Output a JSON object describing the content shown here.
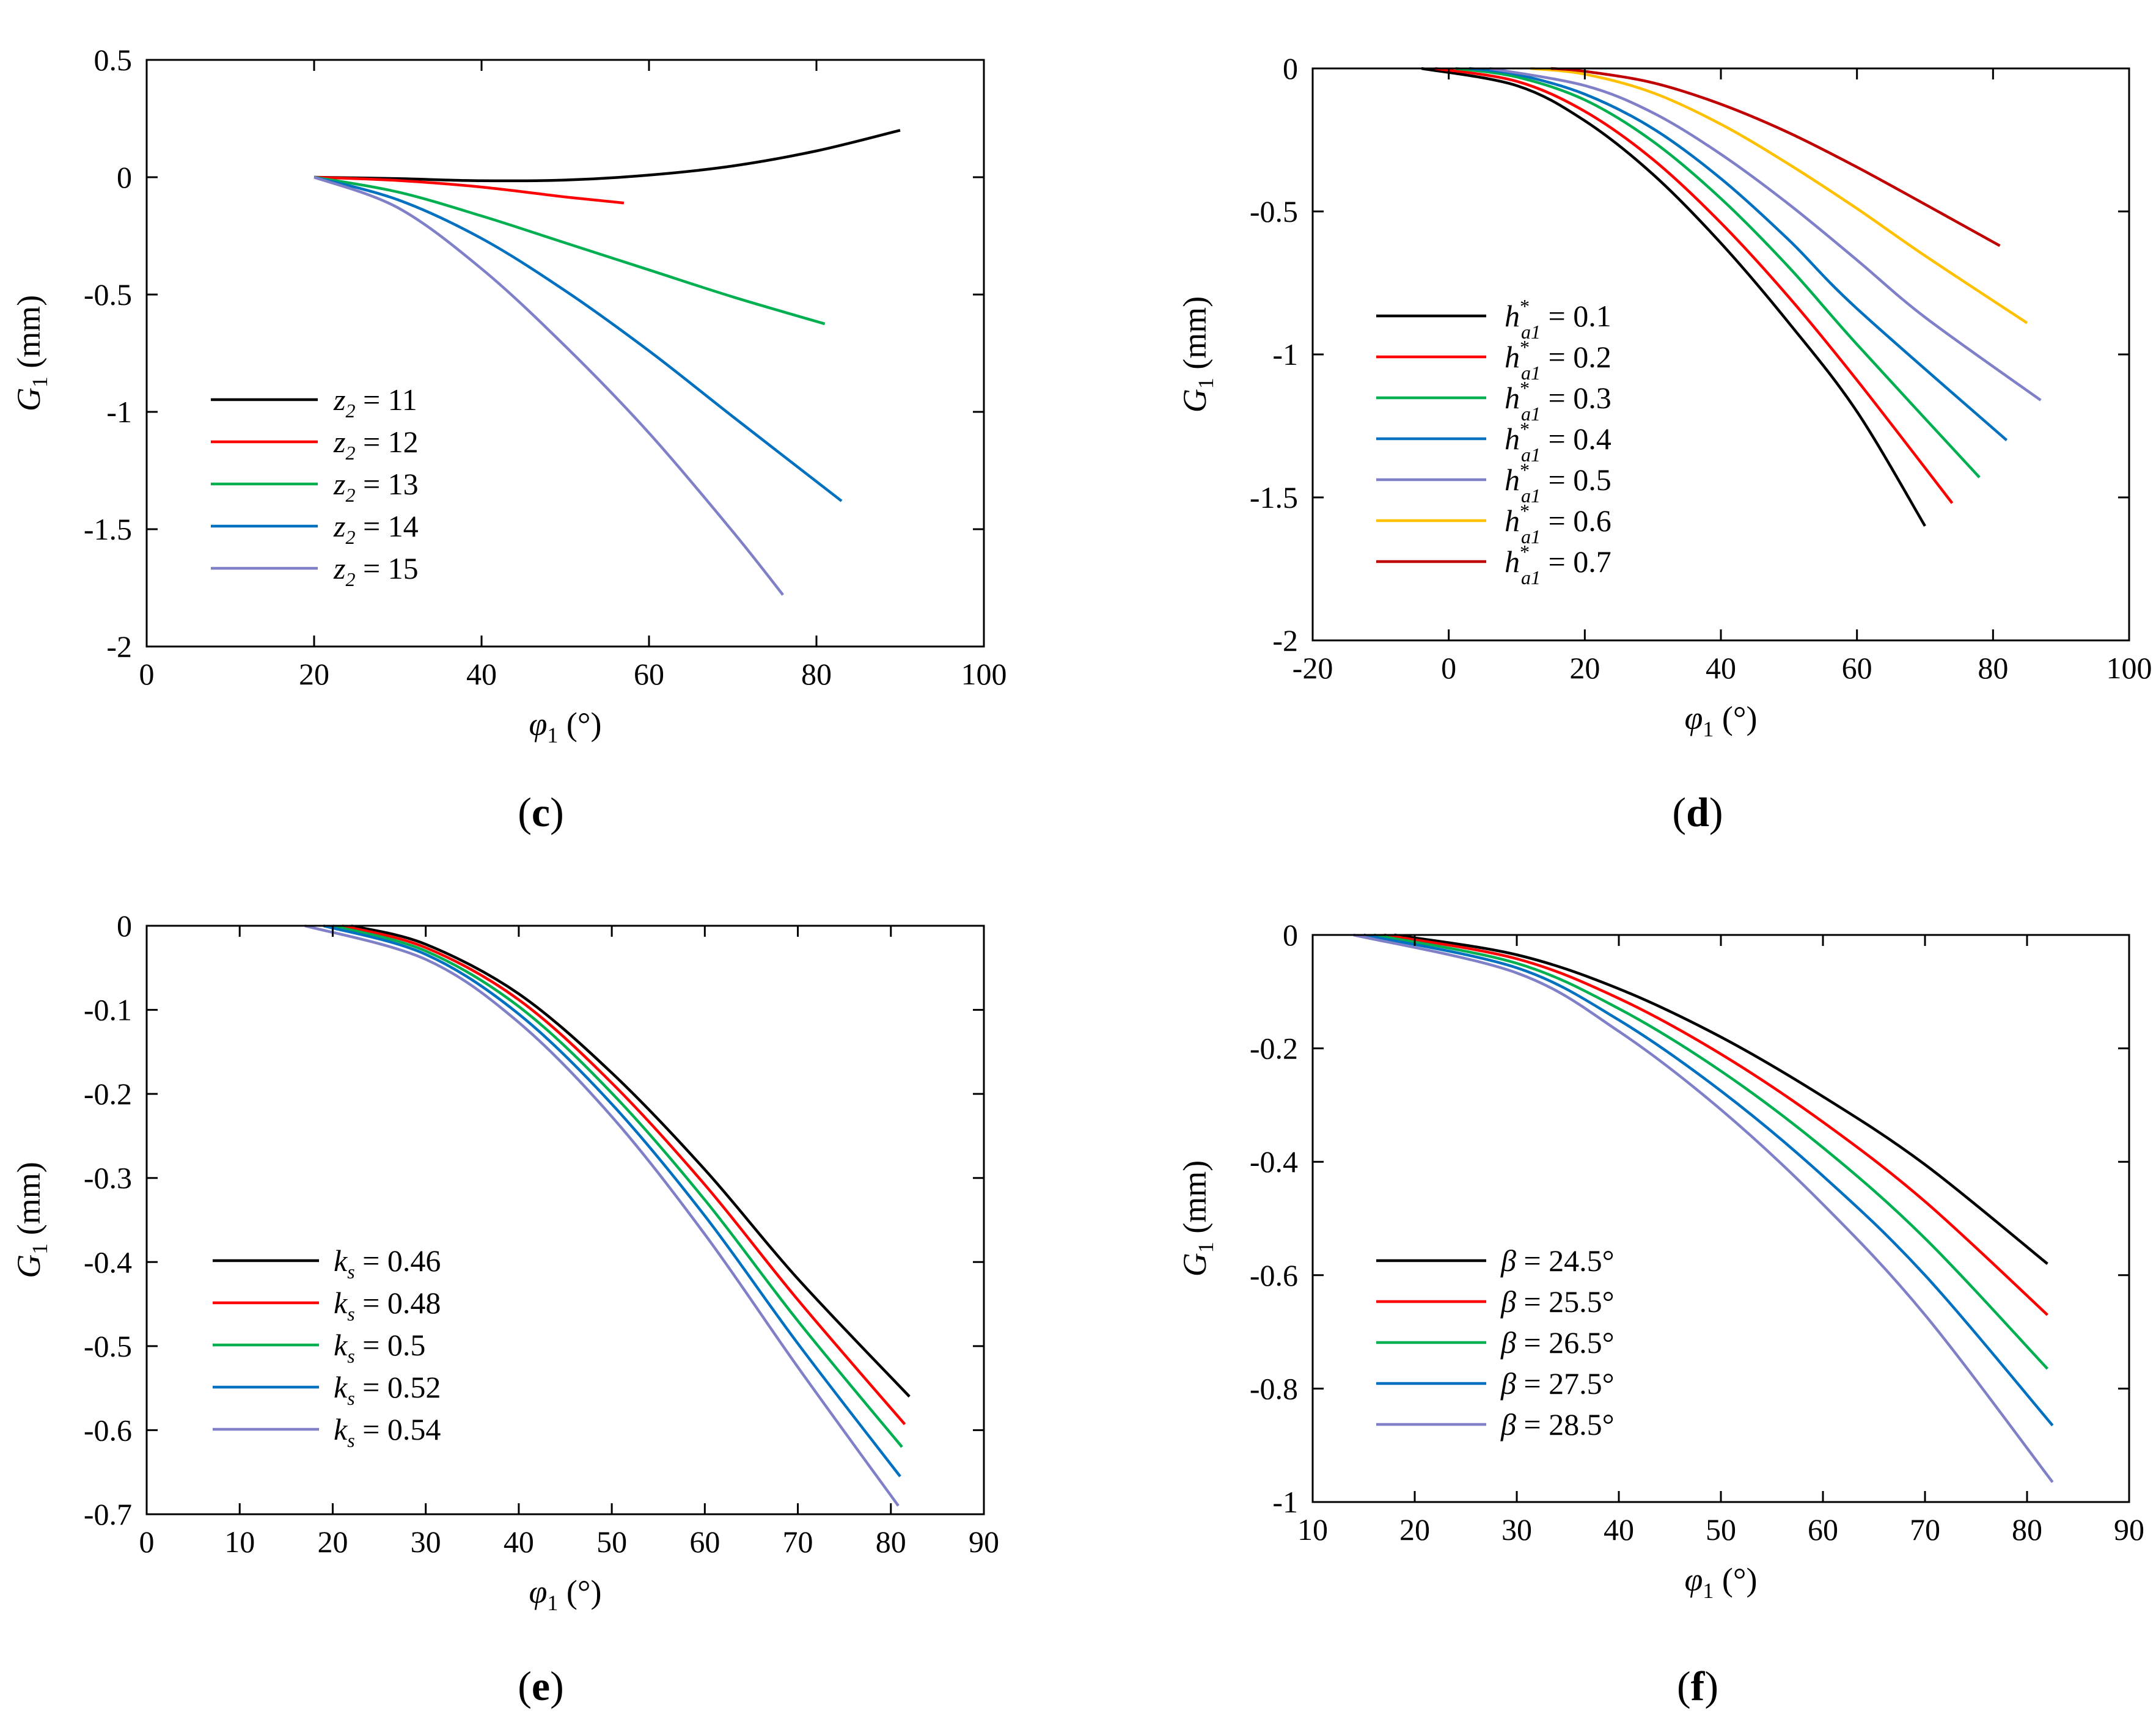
{
  "panels": [
    "c",
    "d",
    "e",
    "f"
  ],
  "chart_data": [
    {
      "panel": "c",
      "type": "line",
      "xlabel": "φ1 (°)",
      "ylabel": "G1 (mm)",
      "xlim": [
        0,
        100
      ],
      "ylim": [
        -2,
        0.5
      ],
      "xticks": [
        0,
        20,
        40,
        60,
        80,
        100
      ],
      "yticks": [
        0.5,
        0,
        -0.5,
        -1,
        -1.5,
        -2
      ],
      "legend_position": "bottom-left",
      "legend_symbol": "z2",
      "series": [
        {
          "name": "11",
          "color": "#000000",
          "x": [
            20,
            30,
            40,
            50,
            60,
            70,
            80,
            90
          ],
          "y": [
            0,
            -0.006,
            -0.015,
            -0.012,
            0.009,
            0.048,
            0.112,
            0.2
          ]
        },
        {
          "name": "12",
          "color": "#ff0000",
          "x": [
            20,
            30,
            40,
            50,
            57
          ],
          "y": [
            0,
            -0.014,
            -0.042,
            -0.084,
            -0.11
          ]
        },
        {
          "name": "13",
          "color": "#00b050",
          "x": [
            20,
            30,
            40,
            50,
            60,
            70,
            81
          ],
          "y": [
            0,
            -0.063,
            -0.165,
            -0.28,
            -0.395,
            -0.51,
            -0.625
          ]
        },
        {
          "name": "14",
          "color": "#0070c0",
          "x": [
            20,
            30,
            40,
            50,
            60,
            70,
            83
          ],
          "y": [
            0,
            -0.096,
            -0.261,
            -0.484,
            -0.74,
            -1.02,
            -1.38
          ]
        },
        {
          "name": "15",
          "color": "#8080c8",
          "x": [
            20,
            30,
            40,
            50,
            60,
            70,
            76
          ],
          "y": [
            0,
            -0.13,
            -0.39,
            -0.72,
            -1.09,
            -1.51,
            -1.78
          ]
        }
      ]
    },
    {
      "panel": "d",
      "type": "line",
      "xlabel": "φ1 (°)",
      "ylabel": "G1 (mm)",
      "xlim": [
        -20,
        100
      ],
      "ylim": [
        -2,
        0
      ],
      "xticks": [
        -20,
        0,
        20,
        40,
        60,
        80,
        100
      ],
      "yticks": [
        0,
        -0.5,
        -1,
        -1.5,
        -2
      ],
      "legend_position": "middle-left",
      "legend_symbol": "h*a1",
      "series": [
        {
          "name": "0.1",
          "color": "#000000",
          "x": [
            -4,
            10,
            20,
            30,
            40,
            50,
            60,
            70
          ],
          "y": [
            0,
            -0.06,
            -0.183,
            -0.37,
            -0.611,
            -0.89,
            -1.2,
            -1.6
          ]
        },
        {
          "name": "0.2",
          "color": "#ff0000",
          "x": [
            -2,
            10,
            20,
            30,
            40,
            50,
            60,
            74
          ],
          "y": [
            0,
            -0.045,
            -0.15,
            -0.318,
            -0.54,
            -0.8,
            -1.09,
            -1.52
          ]
        },
        {
          "name": "0.3",
          "color": "#00b050",
          "x": [
            1,
            10,
            20,
            30,
            40,
            50,
            60,
            78
          ],
          "y": [
            0,
            -0.03,
            -0.11,
            -0.255,
            -0.455,
            -0.695,
            -0.965,
            -1.43
          ]
        },
        {
          "name": "0.4",
          "color": "#0070c0",
          "x": [
            3,
            10,
            20,
            30,
            40,
            50,
            60,
            82
          ],
          "y": [
            0,
            -0.021,
            -0.09,
            -0.21,
            -0.385,
            -0.6,
            -0.84,
            -1.3
          ]
        },
        {
          "name": "0.5",
          "color": "#8080c8",
          "x": [
            6,
            20,
            30,
            40,
            50,
            60,
            70,
            87
          ],
          "y": [
            0,
            -0.06,
            -0.155,
            -0.3,
            -0.475,
            -0.67,
            -0.87,
            -1.16
          ]
        },
        {
          "name": "0.6",
          "color": "#ffc000",
          "x": [
            12,
            20,
            30,
            40,
            50,
            60,
            70,
            85
          ],
          "y": [
            0,
            -0.02,
            -0.085,
            -0.195,
            -0.335,
            -0.49,
            -0.655,
            -0.89
          ]
        },
        {
          "name": "0.7",
          "color": "#c00000",
          "x": [
            15,
            20,
            30,
            40,
            50,
            60,
            70,
            81
          ],
          "y": [
            0,
            -0.01,
            -0.05,
            -0.125,
            -0.225,
            -0.345,
            -0.475,
            -0.62
          ]
        }
      ]
    },
    {
      "panel": "e",
      "type": "line",
      "xlabel": "φ1 (°)",
      "ylabel": "G1 (mm)",
      "xlim": [
        0,
        90
      ],
      "ylim": [
        -0.7,
        0
      ],
      "xticks": [
        0,
        10,
        20,
        30,
        40,
        50,
        60,
        70,
        80,
        90
      ],
      "yticks": [
        0,
        -0.1,
        -0.2,
        -0.3,
        -0.4,
        -0.5,
        -0.6,
        -0.7
      ],
      "legend_position": "bottom-left",
      "legend_symbol": "ks",
      "series": [
        {
          "name": "0.46",
          "color": "#000000",
          "x": [
            22,
            30,
            40,
            50,
            60,
            70,
            82
          ],
          "y": [
            0,
            -0.022,
            -0.081,
            -0.175,
            -0.29,
            -0.42,
            -0.56
          ]
        },
        {
          "name": "0.48",
          "color": "#ff0000",
          "x": [
            21,
            30,
            40,
            50,
            60,
            70,
            81.5
          ],
          "y": [
            0,
            -0.026,
            -0.088,
            -0.187,
            -0.308,
            -0.445,
            -0.593
          ]
        },
        {
          "name": "0.5",
          "color": "#00b050",
          "x": [
            20,
            30,
            40,
            50,
            60,
            70,
            81.2
          ],
          "y": [
            0,
            -0.03,
            -0.096,
            -0.199,
            -0.326,
            -0.47,
            -0.62
          ]
        },
        {
          "name": "0.52",
          "color": "#0070c0",
          "x": [
            19,
            30,
            40,
            50,
            60,
            70,
            81
          ],
          "y": [
            0,
            -0.034,
            -0.105,
            -0.212,
            -0.345,
            -0.497,
            -0.655
          ]
        },
        {
          "name": "0.54",
          "color": "#8080c8",
          "x": [
            17,
            30,
            40,
            50,
            60,
            70,
            80.8
          ],
          "y": [
            0,
            -0.04,
            -0.115,
            -0.227,
            -0.367,
            -0.525,
            -0.69
          ]
        }
      ]
    },
    {
      "panel": "f",
      "type": "line",
      "xlabel": "φ1 (°)",
      "ylabel": "G1 (mm)",
      "xlim": [
        10,
        90
      ],
      "ylim": [
        -1,
        0
      ],
      "xticks": [
        10,
        20,
        30,
        40,
        50,
        60,
        70,
        80,
        90
      ],
      "yticks": [
        0,
        -0.2,
        -0.4,
        -0.6,
        -0.8,
        -1
      ],
      "legend_position": "bottom-left",
      "legend_symbol": "β",
      "series": [
        {
          "name": "24.5°",
          "color": "#000000",
          "x": [
            18,
            30,
            40,
            50,
            60,
            70,
            82
          ],
          "y": [
            0,
            -0.035,
            -0.095,
            -0.18,
            -0.285,
            -0.405,
            -0.58
          ]
        },
        {
          "name": "25.5°",
          "color": "#ff0000",
          "x": [
            17,
            30,
            40,
            50,
            60,
            70,
            82
          ],
          "y": [
            0,
            -0.042,
            -0.112,
            -0.21,
            -0.33,
            -0.47,
            -0.67
          ]
        },
        {
          "name": "26.5°",
          "color": "#00b050",
          "x": [
            16,
            30,
            40,
            50,
            60,
            70,
            82
          ],
          "y": [
            0,
            -0.05,
            -0.13,
            -0.24,
            -0.375,
            -0.535,
            -0.765
          ]
        },
        {
          "name": "27.5°",
          "color": "#0070c0",
          "x": [
            15,
            30,
            40,
            50,
            60,
            70,
            82.5
          ],
          "y": [
            0,
            -0.058,
            -0.15,
            -0.275,
            -0.425,
            -0.6,
            -0.865
          ]
        },
        {
          "name": "28.5°",
          "color": "#8080c8",
          "x": [
            14,
            30,
            40,
            50,
            60,
            70,
            82.5
          ],
          "y": [
            0,
            -0.067,
            -0.17,
            -0.308,
            -0.475,
            -0.67,
            -0.965
          ]
        }
      ]
    }
  ]
}
